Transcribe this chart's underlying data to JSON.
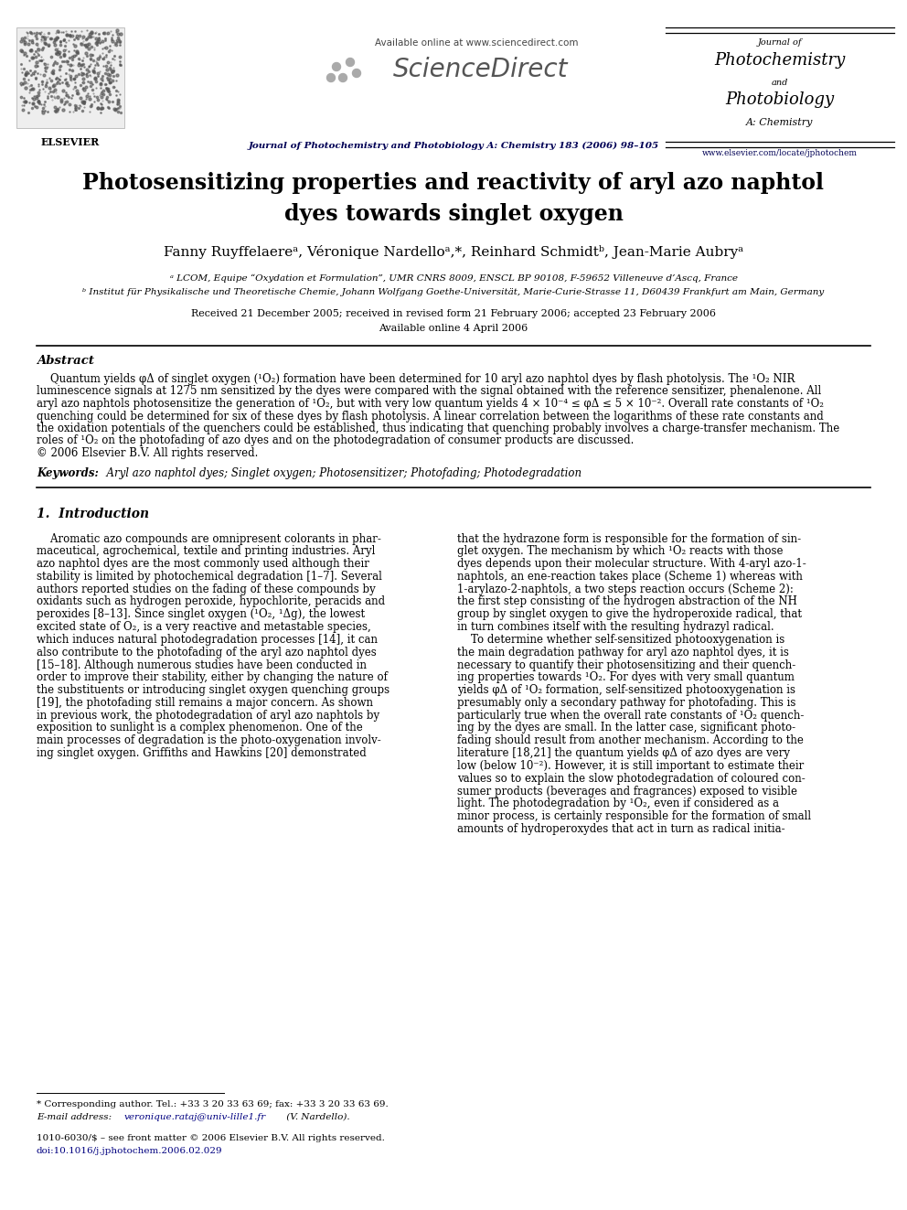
{
  "bg_color": "#ffffff",
  "title_line1": "Photosensitizing properties and reactivity of aryl azo naphtol",
  "title_line2": "dyes towards singlet oxygen",
  "affil_a": "ᵃ LCOM, Equipe “Oxydation et Formulation”, UMR CNRS 8009, ENSCL BP 90108, F-59652 Villeneuve d’Ascq, France",
  "affil_b": "ᵇ Institut für Physikalische und Theoretische Chemie, Johann Wolfgang Goethe-Universität, Marie-Curie-Strasse 11, D60439 Frankfurt am Main, Germany",
  "received": "Received 21 December 2005; received in revised form 21 February 2006; accepted 23 February 2006",
  "available": "Available online 4 April 2006",
  "header_available": "Available online at www.sciencedirect.com",
  "header_journal_sub": "Journal of Photochemistry and Photobiology A: Chemistry 183 (2006) 98–105",
  "header_journal_name_line1": "Journal of",
  "header_journal_name_line2": "Photochemistry",
  "header_journal_name_line3": "and",
  "header_journal_name_line4": "Photobiology",
  "header_journal_name_line5": "A: Chemistry",
  "header_url": "www.elsevier.com/locate/jphotochem",
  "abstract_lines": [
    "    Quantum yields φΔ of singlet oxygen (¹O₂) formation have been determined for 10 aryl azo naphtol dyes by flash photolysis. The ¹O₂ NIR",
    "luminescence signals at 1275 nm sensitized by the dyes were compared with the signal obtained with the reference sensitizer, phenalenone. All",
    "aryl azo naphtols photosensitize the generation of ¹O₂, but with very low quantum yields 4 × 10⁻⁴ ≤ φΔ ≤ 5 × 10⁻². Overall rate constants of ¹O₂",
    "quenching could be determined for six of these dyes by flash photolysis. A linear correlation between the logarithms of these rate constants and",
    "the oxidation potentials of the quenchers could be established, thus indicating that quenching probably involves a charge-transfer mechanism. The",
    "roles of ¹O₂ on the photofading of azo dyes and on the photodegradation of consumer products are discussed.",
    "© 2006 Elsevier B.V. All rights reserved."
  ],
  "left_col_lines": [
    "    Aromatic azo compounds are omnipresent colorants in phar-",
    "maceutical, agrochemical, textile and printing industries. Aryl",
    "azo naphtol dyes are the most commonly used although their",
    "stability is limited by photochemical degradation [1–7]. Several",
    "authors reported studies on the fading of these compounds by",
    "oxidants such as hydrogen peroxide, hypochlorite, peracids and",
    "peroxides [8–13]. Since singlet oxygen (¹O₂, ¹Δg), the lowest",
    "excited state of O₂, is a very reactive and metastable species,",
    "which induces natural photodegradation processes [14], it can",
    "also contribute to the photofading of the aryl azo naphtol dyes",
    "[15–18]. Although numerous studies have been conducted in",
    "order to improve their stability, either by changing the nature of",
    "the substituents or introducing singlet oxygen quenching groups",
    "[19], the photofading still remains a major concern. As shown",
    "in previous work, the photodegradation of aryl azo naphtols by",
    "exposition to sunlight is a complex phenomenon. One of the",
    "main processes of degradation is the photo-oxygenation involv-",
    "ing singlet oxygen. Griffiths and Hawkins [20] demonstrated"
  ],
  "right_col_lines": [
    "that the hydrazone form is responsible for the formation of sin-",
    "glet oxygen. The mechanism by which ¹O₂ reacts with those",
    "dyes depends upon their molecular structure. With 4-aryl azo-1-",
    "naphtols, an ene-reaction takes place (Scheme 1) whereas with",
    "1-arylazo-2-naphtols, a two steps reaction occurs (Scheme 2):",
    "the first step consisting of the hydrogen abstraction of the NH",
    "group by singlet oxygen to give the hydroperoxide radical, that",
    "in turn combines itself with the resulting hydrazyl radical.",
    "    To determine whether self-sensitized photooxygenation is",
    "the main degradation pathway for aryl azo naphtol dyes, it is",
    "necessary to quantify their photosensitizing and their quench-",
    "ing properties towards ¹O₂. For dyes with very small quantum",
    "yields φΔ of ¹O₂ formation, self-sensitized photooxygenation is",
    "presumably only a secondary pathway for photofading. This is",
    "particularly true when the overall rate constants of ¹O₂ quench-",
    "ing by the dyes are small. In the latter case, significant photo-",
    "fading should result from another mechanism. According to the",
    "literature [18,21] the quantum yields φΔ of azo dyes are very",
    "low (below 10⁻²). However, it is still important to estimate their",
    "values so to explain the slow photodegradation of coloured con-",
    "sumer products (beverages and fragrances) exposed to visible",
    "light. The photodegradation by ¹O₂, even if considered as a",
    "minor process, is certainly responsible for the formation of small",
    "amounts of hydroperoxydes that act in turn as radical initia-"
  ],
  "footer_corr": "* Corresponding author. Tel.: +33 3 20 33 63 69; fax: +33 3 20 33 63 69.",
  "footer_email_prefix": "E-mail address: ",
  "footer_email_link": "veronique.rataj@univ-lille1.fr",
  "footer_email_suffix": " (V. Nardello).",
  "footer_issn": "1010-6030/$ – see front matter © 2006 Elsevier B.V. All rights reserved.",
  "footer_doi": "doi:10.1016/j.jphotochem.2006.02.029"
}
